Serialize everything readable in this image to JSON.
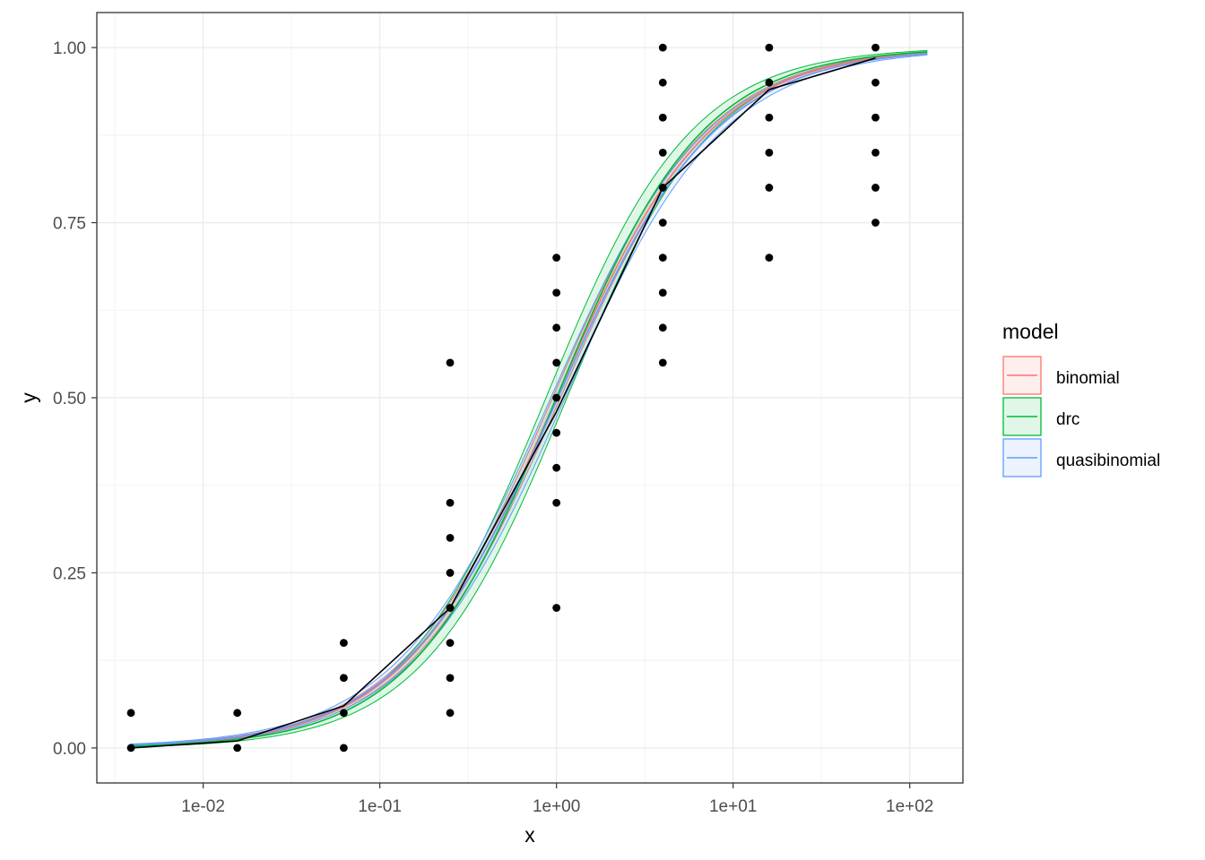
{
  "chart_data": {
    "type": "scatter",
    "xlabel": "x",
    "ylabel": "y",
    "x_scale": "log10",
    "xlim": [
      0.0025,
      200
    ],
    "ylim": [
      -0.05,
      1.05
    ],
    "grid": true,
    "x_ticks": [
      {
        "value": 0.01,
        "label": "1e-02"
      },
      {
        "value": 0.1,
        "label": "1e-01"
      },
      {
        "value": 1,
        "label": "1e+00"
      },
      {
        "value": 10,
        "label": "1e+01"
      },
      {
        "value": 100,
        "label": "1e+02"
      }
    ],
    "y_ticks": [
      {
        "value": 0,
        "label": "0.00"
      },
      {
        "value": 0.25,
        "label": "0.25"
      },
      {
        "value": 0.5,
        "label": "0.50"
      },
      {
        "value": 0.75,
        "label": "0.75"
      },
      {
        "value": 1,
        "label": "1.00"
      }
    ],
    "points": [
      {
        "x": 0.0039,
        "y": 0.05
      },
      {
        "x": 0.0039,
        "y": 0.0
      },
      {
        "x": 0.0156,
        "y": 0.05
      },
      {
        "x": 0.0156,
        "y": 0.0
      },
      {
        "x": 0.0625,
        "y": 0.15
      },
      {
        "x": 0.0625,
        "y": 0.1
      },
      {
        "x": 0.0625,
        "y": 0.05
      },
      {
        "x": 0.0625,
        "y": 0.0
      },
      {
        "x": 0.25,
        "y": 0.55
      },
      {
        "x": 0.25,
        "y": 0.35
      },
      {
        "x": 0.25,
        "y": 0.3
      },
      {
        "x": 0.25,
        "y": 0.25
      },
      {
        "x": 0.25,
        "y": 0.2
      },
      {
        "x": 0.25,
        "y": 0.15
      },
      {
        "x": 0.25,
        "y": 0.1
      },
      {
        "x": 0.25,
        "y": 0.05
      },
      {
        "x": 1,
        "y": 0.7
      },
      {
        "x": 1,
        "y": 0.65
      },
      {
        "x": 1,
        "y": 0.6
      },
      {
        "x": 1,
        "y": 0.55
      },
      {
        "x": 1,
        "y": 0.5
      },
      {
        "x": 1,
        "y": 0.45
      },
      {
        "x": 1,
        "y": 0.4
      },
      {
        "x": 1,
        "y": 0.35
      },
      {
        "x": 1,
        "y": 0.2
      },
      {
        "x": 4,
        "y": 1.0
      },
      {
        "x": 4,
        "y": 0.95
      },
      {
        "x": 4,
        "y": 0.9
      },
      {
        "x": 4,
        "y": 0.85
      },
      {
        "x": 4,
        "y": 0.8
      },
      {
        "x": 4,
        "y": 0.75
      },
      {
        "x": 4,
        "y": 0.7
      },
      {
        "x": 4,
        "y": 0.65
      },
      {
        "x": 4,
        "y": 0.6
      },
      {
        "x": 4,
        "y": 0.55
      },
      {
        "x": 16,
        "y": 1.0
      },
      {
        "x": 16,
        "y": 0.95
      },
      {
        "x": 16,
        "y": 0.9
      },
      {
        "x": 16,
        "y": 0.85
      },
      {
        "x": 16,
        "y": 0.8
      },
      {
        "x": 16,
        "y": 0.7
      },
      {
        "x": 64,
        "y": 1.0
      },
      {
        "x": 64,
        "y": 0.95
      },
      {
        "x": 64,
        "y": 0.9
      },
      {
        "x": 64,
        "y": 0.85
      },
      {
        "x": 64,
        "y": 0.8
      },
      {
        "x": 64,
        "y": 0.75
      }
    ],
    "mean_line": {
      "x": [
        0.0039,
        0.0156,
        0.0625,
        0.25,
        1,
        4,
        16,
        64
      ],
      "y": [
        0.0,
        0.01,
        0.06,
        0.2,
        0.48,
        0.8,
        0.94,
        0.985
      ],
      "color": "#000000"
    },
    "series": [
      {
        "name": "binomial",
        "color": "#F8766D",
        "ec50": 1.0,
        "slope": 1.0,
        "band": 0.012,
        "x_end": 125
      },
      {
        "name": "drc",
        "color": "#00BA38",
        "ec50": 1.0,
        "slope": 1.05,
        "band": 0.035,
        "x_end": 125
      },
      {
        "name": "quasibinomial",
        "color": "#619CFF",
        "ec50": 1.02,
        "slope": 0.98,
        "band": 0.022,
        "x_end": 125
      }
    ],
    "legend": {
      "title": "model",
      "position": "right",
      "entries": [
        "binomial",
        "drc",
        "quasibinomial"
      ]
    }
  }
}
